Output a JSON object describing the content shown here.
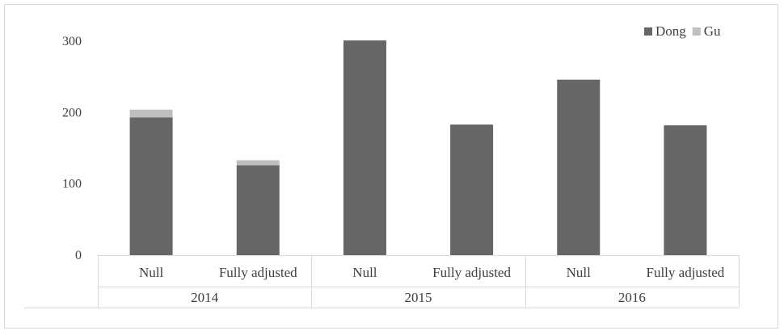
{
  "chart_data": {
    "type": "bar",
    "stacked": true,
    "groups": [
      "2014",
      "2015",
      "2016"
    ],
    "categories": [
      "Null",
      "Fully adjusted",
      "Null",
      "Fully adjusted",
      "Null",
      "Fully adjusted"
    ],
    "category_group": [
      "2014",
      "2014",
      "2015",
      "2015",
      "2016",
      "2016"
    ],
    "series": [
      {
        "name": "Dong",
        "color": "#666666",
        "values": [
          193,
          126,
          301,
          183,
          246,
          182
        ]
      },
      {
        "name": "Gu",
        "color": "#bfbfbf",
        "values": [
          11,
          7,
          0,
          0,
          0,
          0
        ]
      }
    ],
    "y_ticks": [
      "0",
      "100",
      "200",
      "300"
    ],
    "ylim": [
      0,
      300
    ],
    "grid": false,
    "legend_position": "top-right"
  }
}
